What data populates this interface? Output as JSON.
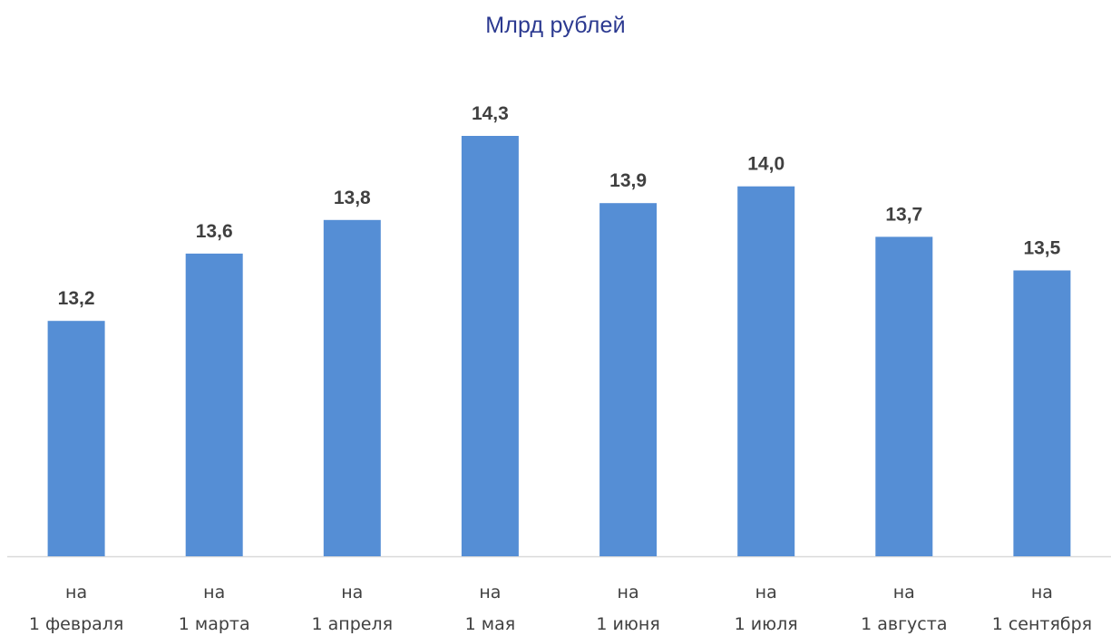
{
  "chart_data": {
    "type": "bar",
    "title": "Млрд  рублей",
    "categories": [
      [
        "на",
        "1 февраля"
      ],
      [
        "на",
        "1 марта"
      ],
      [
        "на",
        "1 апреля"
      ],
      [
        "на",
        "1 мая"
      ],
      [
        "на",
        "1 июня"
      ],
      [
        "на",
        "1 июля"
      ],
      [
        "на",
        "1 августа"
      ],
      [
        "на",
        "1 сентября"
      ]
    ],
    "values": [
      13.2,
      13.6,
      13.8,
      14.3,
      13.9,
      14.0,
      13.7,
      13.5
    ],
    "value_labels": [
      "13,2",
      "13,6",
      "13,8",
      "14,3",
      "13,9",
      "14,0",
      "13,7",
      "13,5"
    ],
    "xlabel": "",
    "ylabel": "",
    "ylim": [
      11.8,
      14.3
    ],
    "grid": false,
    "legend": "none",
    "bar_color": "#558ed5"
  }
}
